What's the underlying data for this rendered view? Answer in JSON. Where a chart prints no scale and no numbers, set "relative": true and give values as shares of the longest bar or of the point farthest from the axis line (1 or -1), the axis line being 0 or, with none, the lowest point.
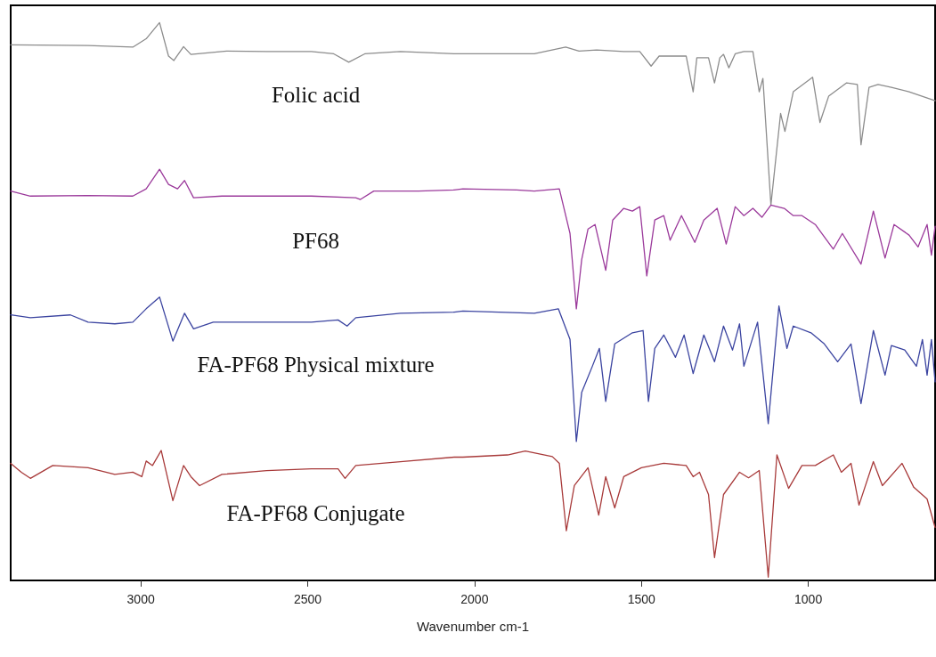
{
  "chart_data": {
    "type": "line",
    "relative": true,
    "xlabel": "Wavenumber cm-1",
    "xlim": [
      3390,
      620
    ],
    "xticks": [
      3000,
      2500,
      2000,
      1500,
      1000
    ],
    "grid": false,
    "marker": "none",
    "line_style": "solid",
    "series": [
      {
        "name": "Folic acid",
        "color": "#8c8c8c",
        "x": [
          3390,
          3158,
          3024,
          2984,
          2944,
          2917,
          2901,
          2872,
          2850,
          2743,
          2623,
          2489,
          2422,
          2377,
          2329,
          2222,
          2061,
          2035,
          1821,
          1727,
          1687,
          1634,
          1553,
          1505,
          1471,
          1447,
          1366,
          1345,
          1334,
          1299,
          1281,
          1265,
          1254,
          1238,
          1219,
          1193,
          1166,
          1147,
          1136,
          1112,
          1083,
          1070,
          1045,
          987,
          965,
          939,
          885,
          853,
          842,
          818,
          791,
          751,
          698,
          620
        ],
        "values": [
          0.96,
          0.959,
          0.956,
          0.971,
          1,
          0.94,
          0.932,
          0.957,
          0.943,
          0.949,
          0.948,
          0.948,
          0.944,
          0.929,
          0.944,
          0.948,
          0.944,
          0.944,
          0.944,
          0.956,
          0.949,
          0.951,
          0.948,
          0.948,
          0.922,
          0.94,
          0.94,
          0.876,
          0.937,
          0.937,
          0.892,
          0.937,
          0.943,
          0.919,
          0.944,
          0.948,
          0.948,
          0.876,
          0.9,
          0.673,
          0.837,
          0.805,
          0.876,
          0.902,
          0.821,
          0.868,
          0.892,
          0.889,
          0.781,
          0.884,
          0.889,
          0.884,
          0.876,
          0.86
        ]
      },
      {
        "name": "PF68",
        "color": "#9b3a9b",
        "x": [
          3390,
          3331,
          3158,
          3024,
          2984,
          2944,
          2917,
          2890,
          2869,
          2842,
          2757,
          2623,
          2489,
          2356,
          2342,
          2302,
          2168,
          2061,
          2035,
          1874,
          1821,
          1746,
          1714,
          1695,
          1679,
          1660,
          1639,
          1607,
          1586,
          1553,
          1527,
          1505,
          1484,
          1460,
          1433,
          1414,
          1380,
          1340,
          1313,
          1273,
          1246,
          1219,
          1193,
          1166,
          1139,
          1112,
          1072,
          1045,
          1019,
          979,
          925,
          898,
          842,
          805,
          770,
          743,
          698,
          671,
          644,
          631,
          620
        ],
        "values": [
          0.698,
          0.689,
          0.69,
          0.689,
          0.702,
          0.737,
          0.71,
          0.702,
          0.717,
          0.686,
          0.689,
          0.689,
          0.689,
          0.686,
          0.683,
          0.698,
          0.698,
          0.7,
          0.702,
          0.7,
          0.698,
          0.702,
          0.622,
          0.487,
          0.575,
          0.63,
          0.638,
          0.556,
          0.646,
          0.667,
          0.662,
          0.67,
          0.546,
          0.646,
          0.654,
          0.61,
          0.654,
          0.606,
          0.646,
          0.667,
          0.603,
          0.67,
          0.654,
          0.667,
          0.651,
          0.673,
          0.667,
          0.654,
          0.654,
          0.638,
          0.594,
          0.622,
          0.567,
          0.662,
          0.578,
          0.638,
          0.619,
          0.598,
          0.638,
          0.583,
          0.635
        ]
      },
      {
        "name": "FA-PF68 Physical mixture",
        "color": "#3b44a0",
        "x": [
          3390,
          3331,
          3211,
          3158,
          3078,
          3024,
          2984,
          2944,
          2904,
          2869,
          2842,
          2783,
          2623,
          2489,
          2409,
          2382,
          2356,
          2222,
          2061,
          2035,
          1821,
          1749,
          1714,
          1695,
          1679,
          1647,
          1626,
          1607,
          1580,
          1527,
          1495,
          1479,
          1460,
          1433,
          1398,
          1372,
          1345,
          1313,
          1281,
          1254,
          1227,
          1206,
          1193,
          1152,
          1120,
          1088,
          1064,
          1045,
          992,
          952,
          912,
          872,
          842,
          805,
          770,
          751,
          711,
          676,
          658,
          644,
          631,
          620
        ],
        "values": [
          0.476,
          0.471,
          0.476,
          0.463,
          0.46,
          0.463,
          0.487,
          0.508,
          0.429,
          0.479,
          0.451,
          0.463,
          0.463,
          0.463,
          0.467,
          0.456,
          0.471,
          0.479,
          0.481,
          0.483,
          0.479,
          0.487,
          0.432,
          0.249,
          0.337,
          0.384,
          0.416,
          0.321,
          0.424,
          0.444,
          0.448,
          0.321,
          0.416,
          0.44,
          0.4,
          0.44,
          0.371,
          0.44,
          0.392,
          0.456,
          0.413,
          0.46,
          0.384,
          0.463,
          0.281,
          0.492,
          0.416,
          0.456,
          0.444,
          0.424,
          0.392,
          0.424,
          0.317,
          0.448,
          0.368,
          0.421,
          0.413,
          0.384,
          0.432,
          0.368,
          0.432,
          0.356
        ]
      },
      {
        "name": "FA-PF68 Conjugate",
        "color": "#a83a3a",
        "x": [
          3390,
          3358,
          3331,
          3264,
          3158,
          3078,
          3024,
          2997,
          2984,
          2965,
          2939,
          2904,
          2872,
          2850,
          2824,
          2757,
          2623,
          2489,
          2409,
          2388,
          2356,
          2222,
          2061,
          2035,
          1901,
          1848,
          1767,
          1746,
          1725,
          1701,
          1660,
          1628,
          1607,
          1580,
          1553,
          1500,
          1433,
          1366,
          1345,
          1326,
          1299,
          1281,
          1254,
          1206,
          1179,
          1147,
          1120,
          1094,
          1059,
          1019,
          979,
          925,
          901,
          872,
          848,
          805,
          778,
          719,
          684,
          644,
          620
        ],
        "values": [
          0.21,
          0.194,
          0.183,
          0.206,
          0.202,
          0.19,
          0.194,
          0.186,
          0.214,
          0.206,
          0.233,
          0.143,
          0.206,
          0.186,
          0.17,
          0.19,
          0.197,
          0.2,
          0.2,
          0.183,
          0.206,
          0.213,
          0.221,
          0.221,
          0.225,
          0.232,
          0.222,
          0.21,
          0.089,
          0.17,
          0.202,
          0.117,
          0.186,
          0.13,
          0.186,
          0.202,
          0.21,
          0.206,
          0.186,
          0.194,
          0.154,
          0.041,
          0.154,
          0.194,
          0.184,
          0.197,
          0.006,
          0.225,
          0.165,
          0.206,
          0.206,
          0.225,
          0.194,
          0.21,
          0.135,
          0.213,
          0.17,
          0.21,
          0.167,
          0.146,
          0.095
        ]
      }
    ]
  }
}
